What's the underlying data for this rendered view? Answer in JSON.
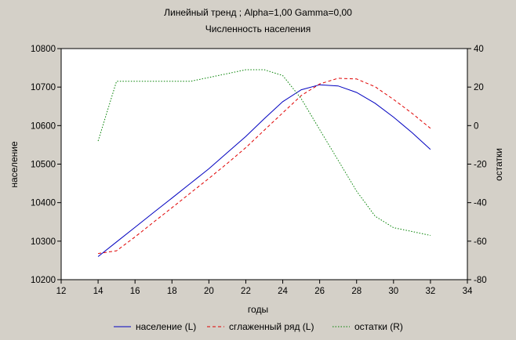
{
  "chart_data": {
    "type": "line",
    "title": "Линейный тренд ; Alpha=1,00 Gamma=0,00",
    "subtitle": "Численность населения",
    "xlabel": "годы",
    "ylabel_left": "население",
    "ylabel_right": "остатки",
    "xlim": [
      12,
      34
    ],
    "ylim_left": [
      10200,
      10800
    ],
    "ylim_right": [
      -80,
      40
    ],
    "x_ticks": [
      "12",
      "14",
      "16",
      "18",
      "20",
      "22",
      "24",
      "26",
      "28",
      "30",
      "32",
      "34"
    ],
    "y_ticks_left": [
      "10200",
      "10300",
      "10400",
      "10500",
      "10600",
      "10700",
      "10800"
    ],
    "y_ticks_right": [
      "-80",
      "-60",
      "-40",
      "-20",
      "0",
      "20",
      "40"
    ],
    "legend_position": "bottom",
    "series": [
      {
        "name": "население (L)",
        "axis": "left",
        "color": "#0000c0",
        "style": "solid",
        "x": [
          14,
          15,
          16,
          17,
          18,
          19,
          20,
          21,
          22,
          23,
          24,
          25,
          26,
          27,
          28,
          29,
          30,
          31,
          32
        ],
        "values": [
          10260,
          10298,
          10336,
          10374,
          10412,
          10450,
          10488,
          10530,
          10572,
          10618,
          10662,
          10693,
          10706,
          10703,
          10686,
          10658,
          10622,
          10582,
          10538
        ]
      },
      {
        "name": "сглаженный ряд (L)",
        "axis": "left",
        "color": "#e00000",
        "style": "dashed",
        "x": [
          14,
          15,
          16,
          17,
          18,
          19,
          20,
          21,
          22,
          23,
          24,
          25,
          26,
          27,
          28,
          29,
          30,
          31,
          32
        ],
        "values": [
          10268,
          10275,
          10311,
          10349,
          10387,
          10425,
          10463,
          10502,
          10543,
          10588,
          10633,
          10678,
          10708,
          10723,
          10721,
          10701,
          10668,
          10632,
          10593
        ]
      },
      {
        "name": "остатки (R)",
        "axis": "right",
        "color": "#008000",
        "style": "dotted",
        "x": [
          14,
          15,
          16,
          17,
          18,
          19,
          20,
          21,
          22,
          23,
          24,
          25,
          26,
          27,
          28,
          29,
          30,
          31,
          32
        ],
        "values": [
          -8,
          23,
          23,
          23,
          23,
          23,
          25,
          27,
          29,
          29,
          26,
          14,
          -2,
          -18,
          -34,
          -47,
          -53,
          -55,
          -57
        ]
      }
    ]
  }
}
